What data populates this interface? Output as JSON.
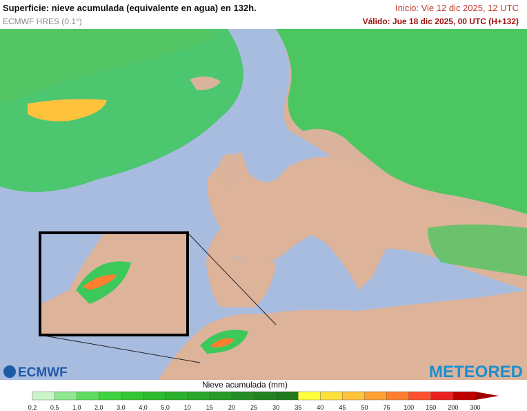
{
  "header": {
    "title": "Superficie: nieve acumulada (equivalente en agua) en 132h.",
    "model": "ECMWF HRES (0.1°)",
    "init": "Inicio: Vie 12 dic 2025, 12 UTC",
    "valid": "Válido: Jue 18 dic 2025, 00 UTC (H+132)"
  },
  "logos": {
    "left": "ECMWF",
    "right": "METEORED"
  },
  "legend": {
    "title": "Nieve acumulada (mm)",
    "labels": [
      "0,2",
      "0,5",
      "1,0",
      "2,0",
      "3,0",
      "4,0",
      "5,0",
      "10",
      "15",
      "20",
      "25",
      "30",
      "35",
      "40",
      "45",
      "50",
      "75",
      "100",
      "150",
      "200",
      "300"
    ],
    "colors": [
      "#c9f5c9",
      "#8fe88f",
      "#5fdc5f",
      "#40d240",
      "#33c633",
      "#2eba2e",
      "#2bb02b",
      "#2aa62a",
      "#279a27",
      "#248e24",
      "#218421",
      "#1d7a1d",
      "#ffff3c",
      "#ffe03c",
      "#ffc23c",
      "#ffa030",
      "#ff7e30",
      "#ff5030",
      "#ec2020",
      "#c00000"
    ],
    "arrow_color": "#a00000"
  }
}
